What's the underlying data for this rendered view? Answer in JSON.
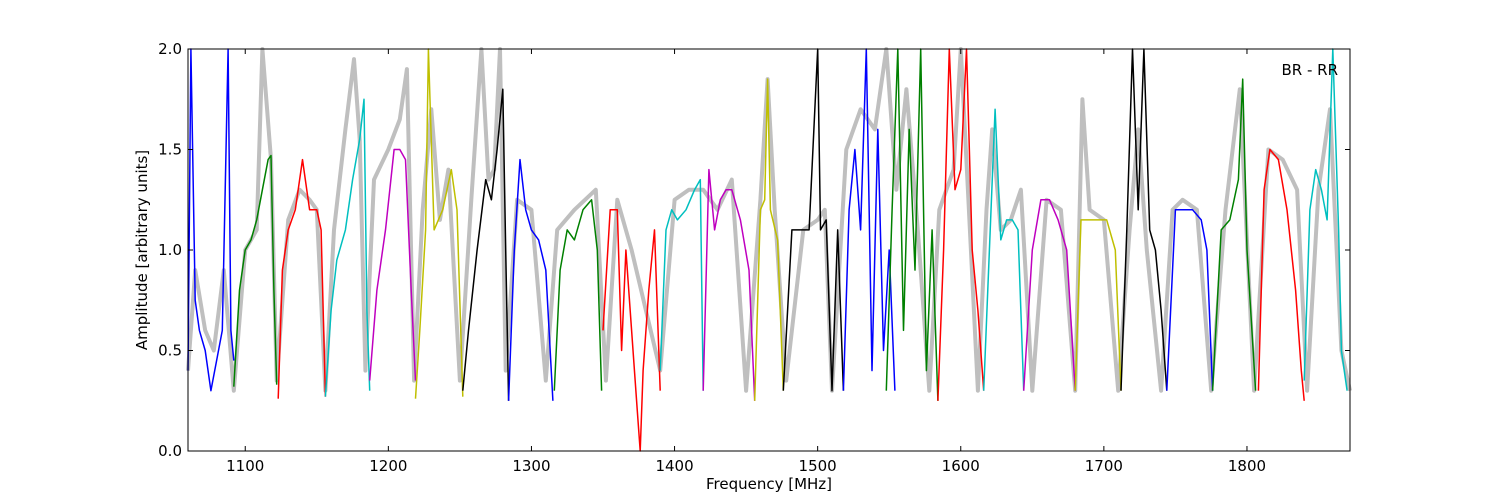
{
  "chart_data": {
    "type": "line",
    "title": "",
    "xlabel": "Frequency [MHz]",
    "ylabel": "Amplitude [arbitrary units]",
    "annotation": "BR - RR",
    "xlim": [
      1060,
      1872
    ],
    "ylim": [
      0.0,
      2.0
    ],
    "xticks": [
      1100,
      1200,
      1300,
      1400,
      1500,
      1600,
      1700,
      1800
    ],
    "yticks": [
      0.0,
      0.5,
      1.0,
      1.5,
      2.0
    ],
    "xtick_labels": [
      "1100",
      "1200",
      "1300",
      "1400",
      "1500",
      "1600",
      "1700",
      "1800"
    ],
    "ytick_labels": [
      "0.0",
      "0.5",
      "1.0",
      "1.5",
      "2.0"
    ],
    "grid": false,
    "background_series": {
      "color": "#bfbfbf",
      "x": [
        1060,
        1065,
        1072,
        1078,
        1085,
        1092,
        1100,
        1108,
        1112,
        1118,
        1122,
        1130,
        1138,
        1145,
        1150,
        1156,
        1162,
        1170,
        1176,
        1180,
        1184,
        1190,
        1200,
        1208,
        1213,
        1218,
        1224,
        1230,
        1236,
        1242,
        1250,
        1258,
        1265,
        1270,
        1274,
        1278,
        1282,
        1290,
        1300,
        1310,
        1318,
        1330,
        1345,
        1352,
        1360,
        1370,
        1380,
        1390,
        1400,
        1410,
        1420,
        1430,
        1440,
        1450,
        1460,
        1465,
        1470,
        1478,
        1490,
        1500,
        1505,
        1510,
        1520,
        1530,
        1540,
        1548,
        1555,
        1562,
        1570,
        1578,
        1585,
        1595,
        1600,
        1605,
        1612,
        1618,
        1622,
        1628,
        1635,
        1642,
        1650,
        1660,
        1670,
        1680,
        1685,
        1690,
        1700,
        1710,
        1718,
        1724,
        1730,
        1740,
        1748,
        1755,
        1765,
        1775,
        1785,
        1795,
        1805,
        1815,
        1825,
        1835,
        1842,
        1850,
        1858,
        1866,
        1872
      ],
      "values": [
        0.4,
        0.9,
        0.6,
        0.5,
        0.9,
        0.3,
        1.0,
        1.1,
        2.0,
        1.45,
        0.35,
        1.15,
        1.3,
        1.25,
        1.2,
        0.3,
        1.1,
        1.6,
        1.95,
        1.55,
        0.4,
        1.35,
        1.5,
        1.65,
        1.9,
        0.35,
        1.2,
        1.7,
        1.15,
        1.4,
        0.35,
        1.25,
        2.0,
        1.35,
        1.4,
        2.0,
        0.4,
        1.25,
        1.2,
        0.35,
        1.1,
        1.2,
        1.3,
        0.35,
        1.25,
        1.0,
        0.7,
        0.4,
        1.25,
        1.3,
        1.3,
        1.2,
        1.35,
        0.3,
        1.25,
        1.85,
        1.2,
        0.35,
        1.1,
        1.15,
        1.2,
        0.3,
        1.5,
        1.7,
        1.6,
        2.0,
        1.3,
        1.8,
        1.1,
        0.3,
        1.2,
        1.4,
        2.0,
        1.3,
        0.3,
        1.2,
        1.6,
        1.1,
        1.15,
        1.3,
        0.3,
        1.25,
        1.2,
        0.3,
        1.75,
        1.2,
        1.15,
        0.3,
        1.1,
        1.6,
        1.0,
        0.3,
        1.2,
        1.25,
        1.2,
        0.3,
        1.2,
        1.8,
        0.3,
        1.5,
        1.45,
        1.3,
        0.3,
        1.3,
        1.7,
        0.5,
        0.3
      ]
    },
    "series": [
      {
        "color": "#0000ff",
        "x": [
          1060,
          1062,
          1065,
          1068,
          1072,
          1076,
          1080,
          1084,
          1088,
          1090,
          1092
        ],
        "values": [
          0.4,
          2.0,
          0.75,
          0.6,
          0.5,
          0.3,
          0.45,
          0.6,
          2.0,
          0.6,
          0.45
        ]
      },
      {
        "color": "#008000",
        "x": [
          1092,
          1096,
          1100,
          1104,
          1108,
          1112,
          1116,
          1118,
          1120,
          1122
        ],
        "values": [
          0.32,
          0.8,
          1.0,
          1.05,
          1.15,
          1.3,
          1.45,
          1.47,
          0.8,
          0.33
        ]
      },
      {
        "color": "#ff0000",
        "x": [
          1123,
          1126,
          1130,
          1135,
          1140,
          1145,
          1150,
          1153,
          1156
        ],
        "values": [
          0.26,
          0.9,
          1.1,
          1.2,
          1.45,
          1.2,
          1.2,
          1.1,
          0.27
        ]
      },
      {
        "color": "#00bfbf",
        "x": [
          1156,
          1160,
          1164,
          1170,
          1175,
          1180,
          1183,
          1185,
          1187
        ],
        "values": [
          0.27,
          0.7,
          0.95,
          1.1,
          1.35,
          1.55,
          1.75,
          0.7,
          0.3
        ]
      },
      {
        "color": "#bf00bf",
        "x": [
          1187,
          1192,
          1198,
          1204,
          1208,
          1212,
          1216,
          1219
        ],
        "values": [
          0.35,
          0.8,
          1.1,
          1.5,
          1.5,
          1.45,
          0.8,
          0.35
        ]
      },
      {
        "color": "#bfbf00",
        "x": [
          1219,
          1222,
          1226,
          1228,
          1232,
          1238,
          1244,
          1248,
          1252
        ],
        "values": [
          0.26,
          0.6,
          1.1,
          2.0,
          1.1,
          1.2,
          1.4,
          1.2,
          0.27
        ]
      },
      {
        "color": "#000000",
        "x": [
          1252,
          1256,
          1262,
          1268,
          1272,
          1276,
          1280,
          1282,
          1284
        ],
        "values": [
          0.3,
          0.6,
          1.0,
          1.35,
          1.25,
          1.5,
          1.8,
          1.0,
          0.25
        ]
      },
      {
        "color": "#0000ff",
        "x": [
          1284,
          1288,
          1292,
          1296,
          1300,
          1305,
          1310,
          1315
        ],
        "values": [
          0.25,
          1.0,
          1.45,
          1.2,
          1.1,
          1.05,
          0.9,
          0.25
        ]
      },
      {
        "color": "#008000",
        "x": [
          1316,
          1320,
          1325,
          1330,
          1336,
          1342,
          1346,
          1349
        ],
        "values": [
          0.3,
          0.9,
          1.1,
          1.05,
          1.2,
          1.25,
          1.0,
          0.3
        ]
      },
      {
        "color": "#ff0000",
        "x": [
          1350,
          1355,
          1360,
          1363,
          1366,
          1370,
          1374,
          1376,
          1378,
          1382,
          1386,
          1390
        ],
        "values": [
          0.6,
          1.2,
          1.2,
          0.5,
          1.0,
          0.6,
          0.2,
          0.0,
          0.4,
          0.8,
          1.1,
          0.3
        ]
      },
      {
        "color": "#00bfbf",
        "x": [
          1390,
          1394,
          1398,
          1402,
          1408,
          1414,
          1418,
          1420
        ],
        "values": [
          0.4,
          1.1,
          1.2,
          1.15,
          1.2,
          1.3,
          1.35,
          0.3
        ]
      },
      {
        "color": "#bf00bf",
        "x": [
          1420,
          1424,
          1428,
          1432,
          1436,
          1440,
          1446,
          1452,
          1456
        ],
        "values": [
          0.3,
          1.4,
          1.1,
          1.25,
          1.3,
          1.3,
          1.15,
          0.9,
          0.25
        ]
      },
      {
        "color": "#bfbf00",
        "x": [
          1456,
          1460,
          1463,
          1465,
          1467,
          1472,
          1476
        ],
        "values": [
          0.25,
          1.2,
          1.25,
          1.85,
          1.2,
          1.05,
          0.3
        ]
      },
      {
        "color": "#000000",
        "x": [
          1476,
          1482,
          1488,
          1494,
          1500,
          1502,
          1506,
          1510,
          1514,
          1518
        ],
        "values": [
          0.3,
          1.1,
          1.1,
          1.1,
          2.0,
          1.1,
          1.15,
          0.3,
          1.1,
          0.3
        ]
      },
      {
        "color": "#0000ff",
        "x": [
          1518,
          1522,
          1526,
          1530,
          1534,
          1538,
          1542,
          1546,
          1550,
          1554
        ],
        "values": [
          0.3,
          1.2,
          1.5,
          1.1,
          2.0,
          0.4,
          1.6,
          0.5,
          1.0,
          0.3
        ]
      },
      {
        "color": "#008000",
        "x": [
          1548,
          1552,
          1556,
          1560,
          1564,
          1568,
          1572,
          1576,
          1580,
          1584
        ],
        "values": [
          0.3,
          1.2,
          2.0,
          0.6,
          1.6,
          0.9,
          2.0,
          0.4,
          1.1,
          0.25
        ]
      },
      {
        "color": "#ff0000",
        "x": [
          1584,
          1588,
          1592,
          1596,
          1600,
          1604,
          1608,
          1612,
          1616
        ],
        "values": [
          0.25,
          1.0,
          2.0,
          1.3,
          1.4,
          2.0,
          1.0,
          0.7,
          0.3
        ]
      },
      {
        "color": "#00bfbf",
        "x": [
          1616,
          1620,
          1624,
          1628,
          1632,
          1636,
          1640,
          1644
        ],
        "values": [
          0.3,
          1.0,
          1.7,
          1.05,
          1.15,
          1.15,
          1.1,
          0.3
        ]
      },
      {
        "color": "#bf00bf",
        "x": [
          1644,
          1650,
          1656,
          1662,
          1668,
          1674,
          1680
        ],
        "values": [
          0.3,
          1.0,
          1.25,
          1.25,
          1.15,
          1.0,
          0.3
        ]
      },
      {
        "color": "#bfbf00",
        "x": [
          1680,
          1684,
          1690,
          1696,
          1702,
          1708,
          1712
        ],
        "values": [
          0.3,
          1.15,
          1.15,
          1.15,
          1.15,
          1.0,
          0.3
        ]
      },
      {
        "color": "#000000",
        "x": [
          1712,
          1716,
          1720,
          1724,
          1728,
          1732,
          1736,
          1740,
          1744
        ],
        "values": [
          0.3,
          1.1,
          2.0,
          1.2,
          2.0,
          1.1,
          1.0,
          0.7,
          0.3
        ]
      },
      {
        "color": "#0000ff",
        "x": [
          1744,
          1750,
          1756,
          1762,
          1768,
          1772,
          1776
        ],
        "values": [
          0.3,
          1.2,
          1.2,
          1.2,
          1.15,
          1.0,
          0.3
        ]
      },
      {
        "color": "#008000",
        "x": [
          1776,
          1782,
          1788,
          1794,
          1797,
          1800,
          1806
        ],
        "values": [
          0.3,
          1.1,
          1.15,
          1.35,
          1.85,
          1.0,
          0.3
        ]
      },
      {
        "color": "#ff0000",
        "x": [
          1808,
          1812,
          1816,
          1822,
          1828,
          1834,
          1838,
          1840
        ],
        "values": [
          0.3,
          1.3,
          1.5,
          1.45,
          1.2,
          0.8,
          0.4,
          0.25
        ]
      },
      {
        "color": "#00bfbf",
        "x": [
          1840,
          1844,
          1848,
          1852,
          1856,
          1860,
          1864,
          1866,
          1870
        ],
        "values": [
          0.35,
          1.2,
          1.4,
          1.3,
          1.15,
          2.0,
          1.1,
          0.5,
          0.3
        ]
      }
    ]
  }
}
